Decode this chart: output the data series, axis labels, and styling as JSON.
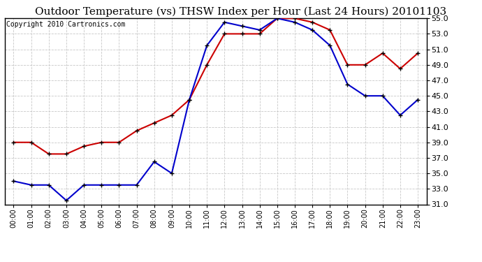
{
  "title": "Outdoor Temperature (vs) THSW Index per Hour (Last 24 Hours) 20101103",
  "copyright": "Copyright 2010 Cartronics.com",
  "hours": [
    0,
    1,
    2,
    3,
    4,
    5,
    6,
    7,
    8,
    9,
    10,
    11,
    12,
    13,
    14,
    15,
    16,
    17,
    18,
    19,
    20,
    21,
    22,
    23
  ],
  "temp_blue": [
    34.0,
    33.5,
    33.5,
    31.5,
    33.5,
    33.5,
    33.5,
    33.5,
    36.5,
    35.0,
    44.5,
    51.5,
    54.5,
    54.0,
    53.5,
    55.0,
    54.5,
    53.5,
    51.5,
    46.5,
    45.0,
    45.0,
    42.5,
    44.5
  ],
  "thsw_red": [
    39.0,
    39.0,
    37.5,
    37.5,
    38.5,
    39.0,
    39.0,
    40.5,
    41.5,
    42.5,
    44.5,
    49.0,
    53.0,
    53.0,
    53.0,
    55.0,
    55.0,
    54.5,
    53.5,
    49.0,
    49.0,
    50.5,
    48.5,
    50.5
  ],
  "ylim_min": 31.0,
  "ylim_max": 55.0,
  "ytick_step": 2.0,
  "line_color_blue": "#0000CC",
  "line_color_red": "#CC0000",
  "marker_color": "#000000",
  "bg_color": "#ffffff",
  "grid_color": "#c8c8c8",
  "title_fontsize": 11,
  "copyright_fontsize": 7,
  "tick_fontsize": 8,
  "xtick_fontsize": 7
}
